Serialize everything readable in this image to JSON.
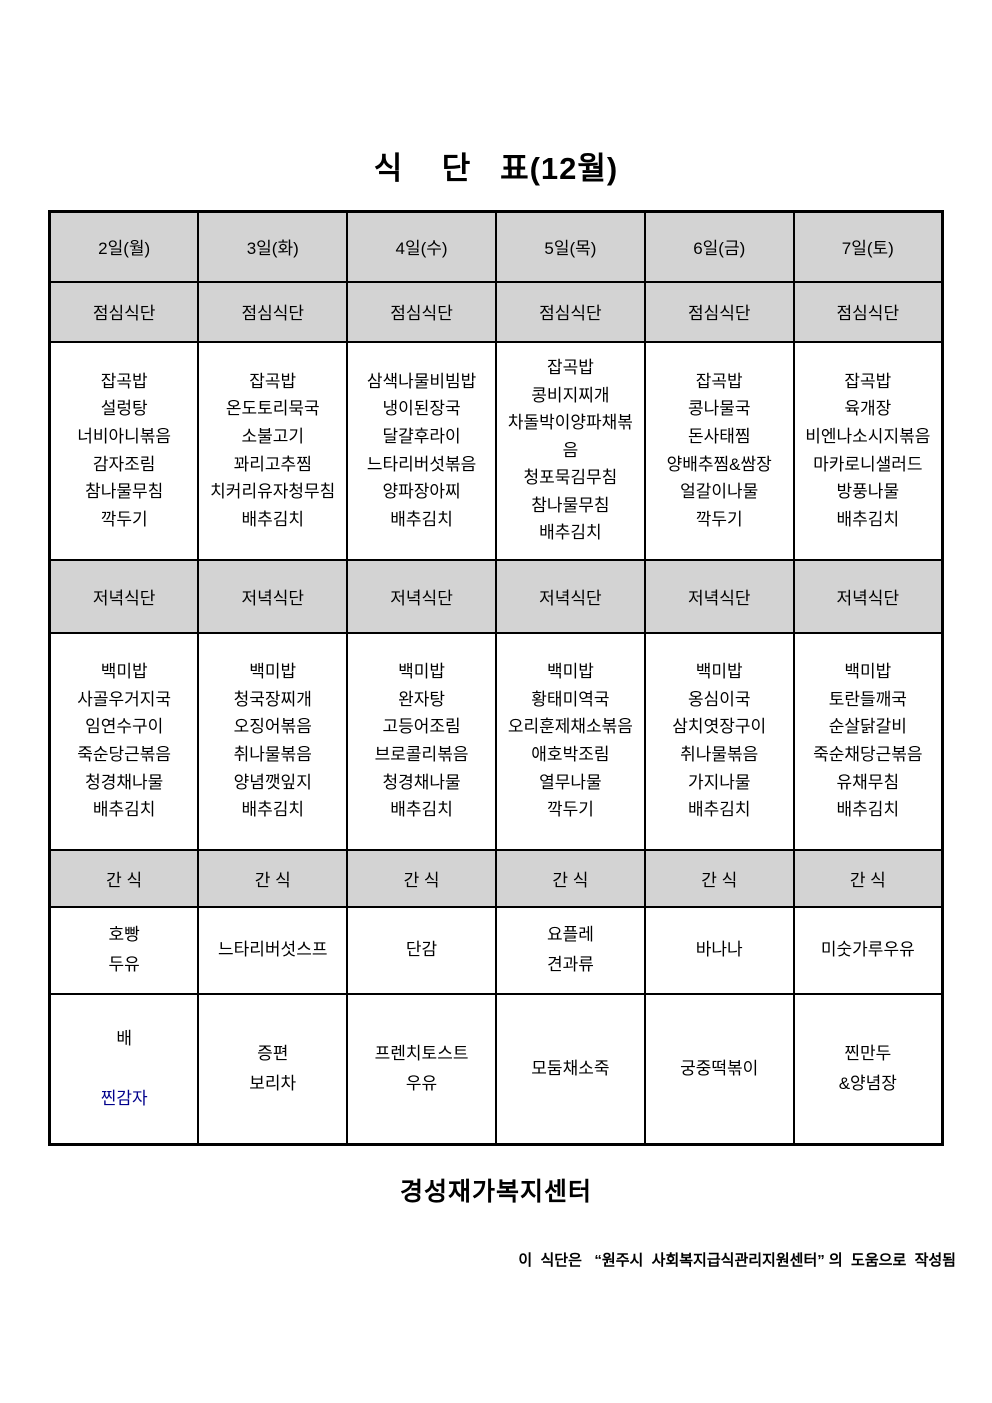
{
  "title": "식    단   표(12월)",
  "table": {
    "columns": [
      {
        "day": "2일(월)",
        "lunch_header": "점심식단",
        "lunch": [
          "잡곡밥",
          "설렁탕",
          "너비아니볶음",
          "감자조림",
          "참나물무침",
          "깍두기"
        ],
        "dinner_header": "저녁식단",
        "dinner": [
          "백미밥",
          "사골우거지국",
          "임연수구이",
          "죽순당근볶음",
          "청경채나물",
          "배추김치"
        ],
        "snack_header": "간 식",
        "snack1": [
          "호빵",
          "두유"
        ],
        "snack2": [
          "배",
          "찐감자"
        ]
      },
      {
        "day": "3일(화)",
        "lunch_header": "점심식단",
        "lunch": [
          "잡곡밥",
          "온도토리묵국",
          "소불고기",
          "꽈리고추찜",
          "치커리유자청무침",
          "배추김치"
        ],
        "dinner_header": "저녁식단",
        "dinner": [
          "백미밥",
          "청국장찌개",
          "오징어볶음",
          "취나물볶음",
          "양념깻잎지",
          "배추김치"
        ],
        "snack_header": "간 식",
        "snack1": [
          "느타리버섯스프"
        ],
        "snack2": [
          "증편",
          "보리차"
        ]
      },
      {
        "day": "4일(수)",
        "lunch_header": "점심식단",
        "lunch": [
          "삼색나물비빔밥",
          "냉이된장국",
          "달걀후라이",
          "느타리버섯볶음",
          "양파장아찌",
          "배추김치"
        ],
        "dinner_header": "저녁식단",
        "dinner": [
          "백미밥",
          "완자탕",
          "고등어조림",
          "브로콜리볶음",
          "청경채나물",
          "배추김치"
        ],
        "snack_header": "간 식",
        "snack1": [
          "단감"
        ],
        "snack2": [
          "프렌치토스트",
          "우유"
        ]
      },
      {
        "day": "5일(목)",
        "lunch_header": "점심식단",
        "lunch": [
          "잡곡밥",
          "콩비지찌개",
          "차돌박이양파채볶음",
          "청포묵김무침",
          "참나물무침",
          "배추김치"
        ],
        "dinner_header": "저녁식단",
        "dinner": [
          "백미밥",
          "황태미역국",
          "오리훈제채소볶음",
          "애호박조림",
          "열무나물",
          "깍두기"
        ],
        "snack_header": "간 식",
        "snack1": [
          "요플레",
          "견과류"
        ],
        "snack2": [
          "모둠채소죽"
        ]
      },
      {
        "day": "6일(금)",
        "lunch_header": "점심식단",
        "lunch": [
          "잡곡밥",
          "콩나물국",
          "돈사태찜",
          "양배추찜&쌈장",
          "얼갈이나물",
          "깍두기"
        ],
        "dinner_header": "저녁식단",
        "dinner": [
          "백미밥",
          "옹심이국",
          "삼치엿장구이",
          "취나물볶음",
          "가지나물",
          "배추김치"
        ],
        "snack_header": "간 식",
        "snack1": [
          "바나나"
        ],
        "snack2": [
          "궁중떡볶이"
        ]
      },
      {
        "day": "7일(토)",
        "lunch_header": "점심식단",
        "lunch": [
          "잡곡밥",
          "육개장",
          "비엔나소시지볶음",
          "마카로니샐러드",
          "방풍나물",
          "배추김치"
        ],
        "dinner_header": "저녁식단",
        "dinner": [
          "백미밥",
          "토란들깨국",
          "순살닭갈비",
          "죽순채당근볶음",
          "유채무침",
          "배추김치"
        ],
        "snack_header": "간 식",
        "snack1": [
          "미숫가루우유"
        ],
        "snack2": [
          "찐만두",
          "&양념장"
        ]
      }
    ]
  },
  "footer": {
    "center_name": "경성재가복지센터",
    "note": "이  식단은   “원주시  사회복지급식관리지원센터” 의  도움으로  작성됨"
  },
  "colors": {
    "header_bg": "#d3d3d3",
    "border": "#000000",
    "highlight_text": "#00008B"
  }
}
